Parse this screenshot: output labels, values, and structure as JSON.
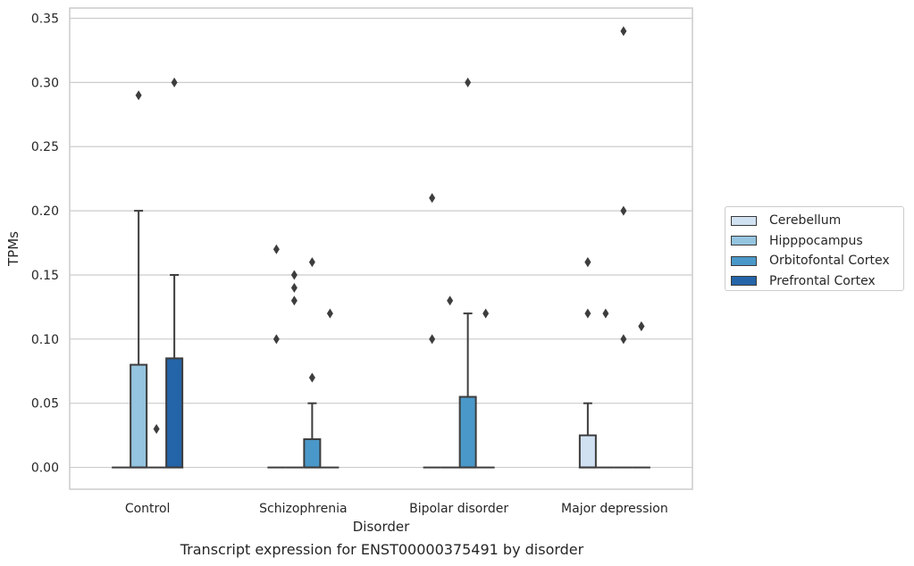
{
  "caption": "Transcript expression for ENST00000375491 by disorder",
  "chart_data": {
    "type": "boxplot",
    "xlabel": "Disorder",
    "ylabel": "TPMs",
    "ylim": [
      -0.017,
      0.358
    ],
    "yticks": [
      "0.00",
      "0.05",
      "0.10",
      "0.15",
      "0.20",
      "0.25",
      "0.30",
      "0.35"
    ],
    "grid": true,
    "legend_position": "right",
    "categories": [
      "Control",
      "Schizophrenia",
      "Bipolar disorder",
      "Major depression"
    ],
    "series": [
      {
        "name": "Cerebellum",
        "color": "#d0e1f2",
        "boxes": [
          {
            "q1": 0,
            "median": 0,
            "q3": 0,
            "whisker_low": 0,
            "whisker_high": 0,
            "outliers": []
          },
          {
            "q1": 0,
            "median": 0,
            "q3": 0,
            "whisker_low": 0,
            "whisker_high": 0,
            "outliers": [
              0.17,
              0.1
            ]
          },
          {
            "q1": 0,
            "median": 0,
            "q3": 0,
            "whisker_low": 0,
            "whisker_high": 0,
            "outliers": [
              0.21,
              0.1
            ]
          },
          {
            "q1": 0,
            "median": 0,
            "q3": 0.025,
            "whisker_low": 0,
            "whisker_high": 0.05,
            "outliers": [
              0.16,
              0.16,
              0.12
            ]
          }
        ]
      },
      {
        "name": "Hipppocampus",
        "color": "#94c4df",
        "boxes": [
          {
            "q1": 0,
            "median": 0,
            "q3": 0.08,
            "whisker_low": 0,
            "whisker_high": 0.2,
            "outliers": [
              0.29
            ]
          },
          {
            "q1": 0,
            "median": 0,
            "q3": 0,
            "whisker_low": 0,
            "whisker_high": 0,
            "outliers": [
              0.15,
              0.14,
              0.13
            ]
          },
          {
            "q1": 0,
            "median": 0,
            "q3": 0,
            "whisker_low": 0,
            "whisker_high": 0,
            "outliers": [
              0.13
            ]
          },
          {
            "q1": 0,
            "median": 0,
            "q3": 0,
            "whisker_low": 0,
            "whisker_high": 0,
            "outliers": [
              0.12
            ]
          }
        ]
      },
      {
        "name": "Orbitofontal Cortex",
        "color": "#4a98c9",
        "boxes": [
          {
            "q1": 0,
            "median": 0,
            "q3": 0,
            "whisker_low": 0,
            "whisker_high": 0,
            "outliers": [
              0.03
            ]
          },
          {
            "q1": 0,
            "median": 0,
            "q3": 0.022,
            "whisker_low": 0,
            "whisker_high": 0.05,
            "outliers": [
              0.16,
              0.07
            ]
          },
          {
            "q1": 0,
            "median": 0,
            "q3": 0.055,
            "whisker_low": 0,
            "whisker_high": 0.12,
            "outliers": [
              0.3
            ]
          },
          {
            "q1": 0,
            "median": 0,
            "q3": 0,
            "whisker_low": 0,
            "whisker_high": 0,
            "outliers": [
              0.34,
              0.2,
              0.1
            ]
          }
        ]
      },
      {
        "name": "Prefrontal Cortex",
        "color": "#2464a8",
        "boxes": [
          {
            "q1": 0,
            "median": 0,
            "q3": 0.085,
            "whisker_low": 0,
            "whisker_high": 0.15,
            "outliers": [
              0.3
            ]
          },
          {
            "q1": 0,
            "median": 0,
            "q3": 0,
            "whisker_low": 0,
            "whisker_high": 0,
            "outliers": [
              0.12
            ]
          },
          {
            "q1": 0,
            "median": 0,
            "q3": 0,
            "whisker_low": 0,
            "whisker_high": 0,
            "outliers": [
              0.12
            ]
          },
          {
            "q1": 0,
            "median": 0,
            "q3": 0,
            "whisker_low": 0,
            "whisker_high": 0,
            "outliers": [
              0.11,
              0.11
            ]
          }
        ]
      }
    ]
  }
}
